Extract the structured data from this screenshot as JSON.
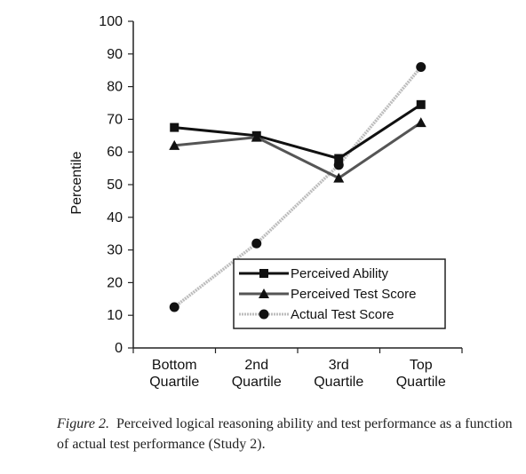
{
  "chart_data": {
    "type": "line",
    "categories": [
      [
        "Bottom",
        "Quartile"
      ],
      [
        "2nd",
        "Quartile"
      ],
      [
        "3rd",
        "Quartile"
      ],
      [
        "Top",
        "Quartile"
      ]
    ],
    "ylabel": "Percentile",
    "ylim": [
      0,
      100
    ],
    "yticks": [
      0,
      10,
      20,
      30,
      40,
      50,
      60,
      70,
      80,
      90,
      100
    ],
    "legend_position": "bottom-right",
    "series": [
      {
        "name": "Perceived Ability",
        "values": [
          67.5,
          65,
          58,
          74.5
        ],
        "marker": "square",
        "color": "#111111"
      },
      {
        "name": "Perceived Test Score",
        "values": [
          62,
          64.5,
          52,
          69
        ],
        "marker": "triangle",
        "color": "#555555"
      },
      {
        "name": "Actual Test Score",
        "values": [
          12.5,
          32,
          56,
          86
        ],
        "marker": "circle",
        "color": "#bdbdbd"
      }
    ]
  },
  "caption": {
    "label": "Figure 2.",
    "text": "Perceived logical reasoning ability and test performance as a function of actual test performance (Study 2)."
  }
}
